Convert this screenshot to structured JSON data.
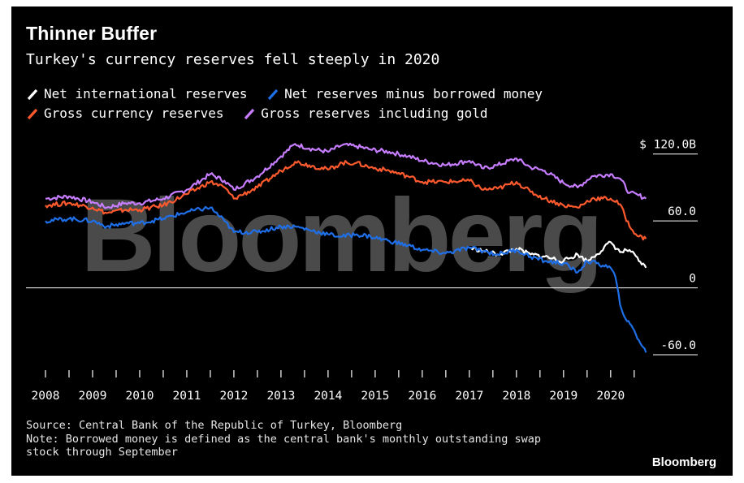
{
  "header": {
    "title": "Thinner Buffer",
    "subtitle": "Turkey's currency reserves fell steeply in 2020"
  },
  "legend": [
    {
      "label": "Net international reserves",
      "color": "#ffffff"
    },
    {
      "label": "Net reserves minus borrowed money",
      "color": "#1f6fe8"
    },
    {
      "label": "Gross currency reserves",
      "color": "#ff5a2e"
    },
    {
      "label": "Gross reserves including gold",
      "color": "#c77dff"
    }
  ],
  "watermark": "Bloomberg",
  "footer": {
    "source": "Source: Central Bank of the Republic of Turkey, Bloomberg",
    "note_line1": "Note: Borrowed money is defined as the central bank's monthly outstanding swap",
    "note_line2": "stock through September",
    "brand": "Bloomberg"
  },
  "chart_data": {
    "type": "line",
    "xlim": [
      2008,
      2020.9
    ],
    "ylim": [
      -68,
      130
    ],
    "y_ticks": [
      {
        "value": 120,
        "label": "$ 120.0B"
      },
      {
        "value": 60,
        "label": "60.0"
      },
      {
        "value": 0,
        "label": "0"
      },
      {
        "value": -60,
        "label": "-60.0"
      }
    ],
    "x_ticks": [
      "2008",
      "2009",
      "2010",
      "2011",
      "2012",
      "2013",
      "2014",
      "2015",
      "2016",
      "2017",
      "2018",
      "2019",
      "2020"
    ],
    "series": [
      {
        "name": "Gross reserves including gold",
        "color": "#c77dff",
        "x": [
          2008.0,
          2008.5,
          2009.0,
          2009.3,
          2009.7,
          2010.0,
          2010.5,
          2011.0,
          2011.5,
          2011.8,
          2012.0,
          2012.5,
          2013.0,
          2013.3,
          2013.6,
          2014.0,
          2014.3,
          2014.6,
          2014.9,
          2015.3,
          2015.7,
          2016.0,
          2016.5,
          2017.0,
          2017.3,
          2017.6,
          2018.0,
          2018.3,
          2018.6,
          2019.0,
          2019.3,
          2019.6,
          2020.0,
          2020.2,
          2020.4,
          2020.6,
          2020.75
        ],
        "y": [
          80,
          82,
          77,
          72,
          76,
          76,
          80,
          88,
          102,
          96,
          88,
          100,
          118,
          129,
          125,
          122,
          128,
          127,
          124,
          122,
          118,
          114,
          110,
          114,
          107,
          110,
          116,
          108,
          105,
          94,
          90,
          100,
          102,
          98,
          85,
          83,
          80
        ]
      },
      {
        "name": "Gross currency reserves",
        "color": "#ff5a2e",
        "x": [
          2008.0,
          2008.5,
          2009.0,
          2009.3,
          2009.7,
          2010.0,
          2010.5,
          2011.0,
          2011.5,
          2011.8,
          2012.0,
          2012.5,
          2013.0,
          2013.3,
          2013.6,
          2014.0,
          2014.3,
          2014.6,
          2014.9,
          2015.3,
          2015.7,
          2016.0,
          2016.5,
          2017.0,
          2017.3,
          2017.6,
          2018.0,
          2018.3,
          2018.6,
          2019.0,
          2019.3,
          2019.6,
          2020.0,
          2020.2,
          2020.4,
          2020.6,
          2020.75
        ],
        "y": [
          74,
          76,
          72,
          67,
          70,
          70,
          74,
          84,
          95,
          90,
          80,
          90,
          105,
          113,
          110,
          106,
          112,
          112,
          108,
          105,
          100,
          95,
          95,
          96,
          88,
          89,
          95,
          86,
          80,
          74,
          72,
          80,
          80,
          75,
          55,
          46,
          44
        ]
      },
      {
        "name": "Net international reserves",
        "color": "#ffffff",
        "x": [
          2017.0,
          2017.3,
          2017.6,
          2018.0,
          2018.3,
          2018.6,
          2019.0,
          2019.3,
          2019.5,
          2019.7,
          2020.0,
          2020.2,
          2020.4,
          2020.6,
          2020.75
        ],
        "y": [
          36,
          33,
          30,
          35,
          30,
          28,
          24,
          30,
          24,
          30,
          41,
          32,
          34,
          24,
          18
        ]
      },
      {
        "name": "Net reserves minus borrowed money",
        "color": "#1f6fe8",
        "x": [
          2008.0,
          2008.5,
          2009.0,
          2009.3,
          2009.7,
          2010.0,
          2010.5,
          2011.0,
          2011.5,
          2011.8,
          2012.0,
          2012.5,
          2013.0,
          2013.3,
          2013.6,
          2014.0,
          2014.3,
          2014.6,
          2014.9,
          2015.3,
          2015.7,
          2016.0,
          2016.5,
          2017.0,
          2017.3,
          2017.6,
          2018.0,
          2018.3,
          2018.6,
          2019.0,
          2019.3,
          2019.5,
          2019.7,
          2020.0,
          2020.1,
          2020.2,
          2020.35,
          2020.5,
          2020.6,
          2020.75
        ],
        "y": [
          60,
          62,
          60,
          55,
          58,
          58,
          62,
          68,
          72,
          60,
          50,
          50,
          55,
          55,
          52,
          48,
          46,
          48,
          46,
          42,
          38,
          34,
          31,
          36,
          33,
          30,
          34,
          28,
          24,
          22,
          14,
          24,
          22,
          18,
          10,
          -15,
          -30,
          -38,
          -47,
          -58
        ]
      }
    ]
  }
}
